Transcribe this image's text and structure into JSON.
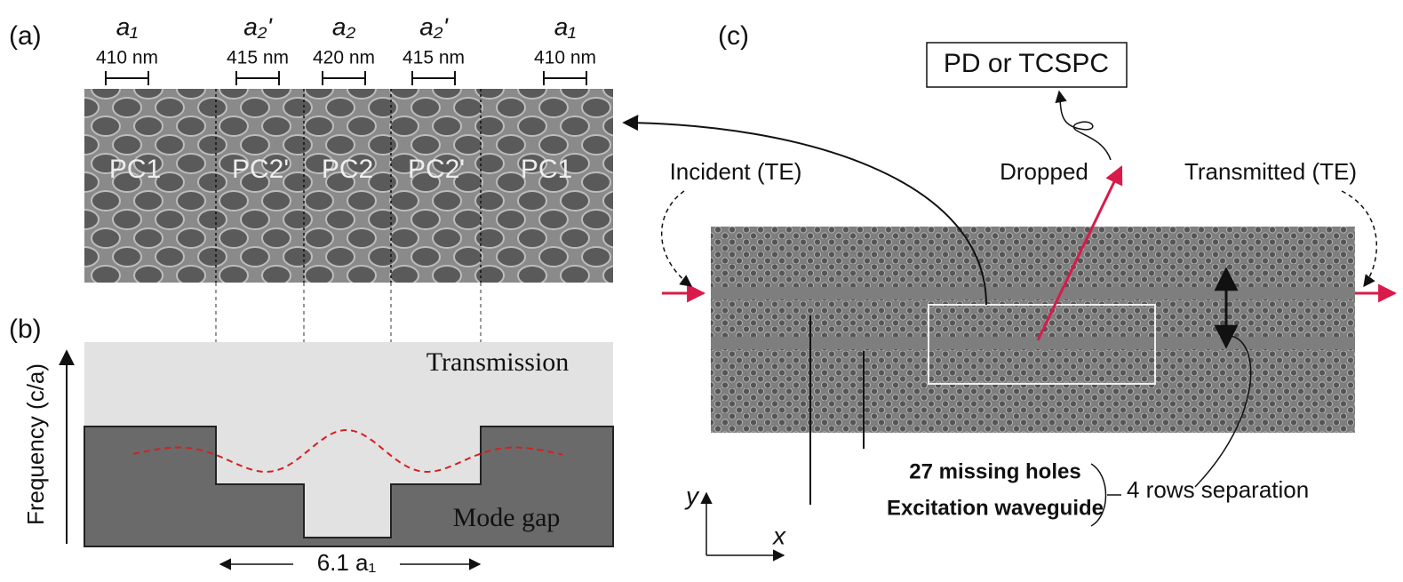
{
  "panel_a": {
    "label": "(a)",
    "periods": [
      {
        "symbol": "a₁",
        "size": "410 nm"
      },
      {
        "symbol": "a₂'",
        "size": "415 nm"
      },
      {
        "symbol": "a₂",
        "size": "420 nm"
      },
      {
        "symbol": "a₂'",
        "size": "415 nm"
      },
      {
        "symbol": "a₁",
        "size": "410 nm"
      }
    ],
    "regions": [
      "PC1",
      "PC2'",
      "PC2",
      "PC2'",
      "PC1"
    ]
  },
  "panel_b": {
    "label": "(b)",
    "y_axis": "Frequency (c/a)",
    "band_top": "Transmission",
    "band_bottom": "Mode gap",
    "length": "6.1 a₁"
  },
  "panel_c": {
    "label": "(c)",
    "detector": "PD or TCSPC",
    "incident": "Incident (TE)",
    "dropped": "Dropped",
    "transmitted": "Transmitted (TE)",
    "missing_holes": "27 missing holes",
    "waveguide": "Excitation waveguide",
    "separation": "4 rows separation",
    "axis_y": "y",
    "axis_x": "x"
  }
}
